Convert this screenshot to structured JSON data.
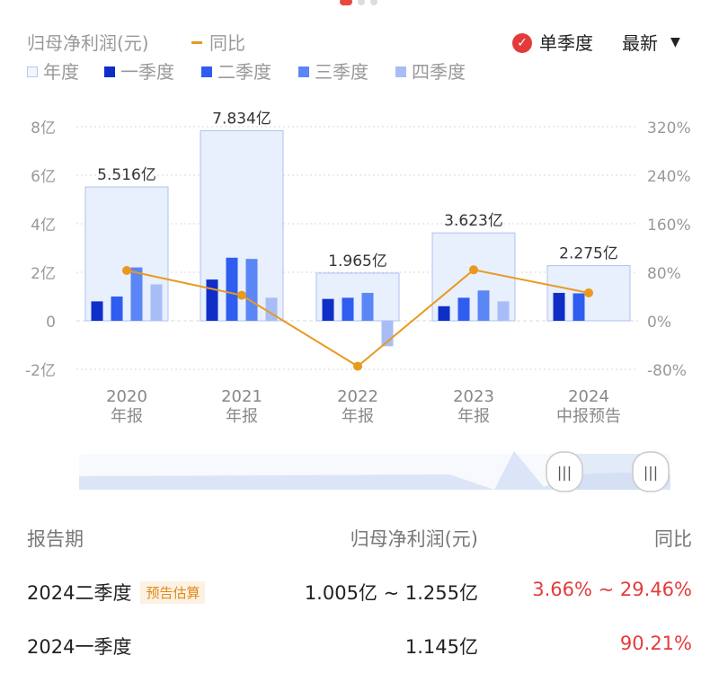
{
  "header": {
    "title": "归母净利润(元)",
    "yoy_label": "同比",
    "seasonal_label": "单季度",
    "sort_label": "最新"
  },
  "legend": [
    {
      "label": "年度",
      "color": "#e8effd"
    },
    {
      "label": "一季度",
      "color": "#0f2ec8"
    },
    {
      "label": "二季度",
      "color": "#2e5df0"
    },
    {
      "label": "三季度",
      "color": "#5b86f5"
    },
    {
      "label": "四季度",
      "color": "#a7bdf6"
    }
  ],
  "chart_data": {
    "type": "bar",
    "categories": [
      "2020 年报",
      "2021 年报",
      "2022 年报",
      "2023 年报",
      "2024 中报预告"
    ],
    "category_labels": [
      [
        "2020",
        "年报"
      ],
      [
        "2021",
        "年报"
      ],
      [
        "2022",
        "年报"
      ],
      [
        "2023",
        "年报"
      ],
      [
        "2024",
        "中报预告"
      ]
    ],
    "annual": {
      "name": "年度",
      "values": [
        5.516,
        7.834,
        1.965,
        3.623,
        2.275
      ],
      "labels": [
        "5.516亿",
        "7.834亿",
        "1.965亿",
        "3.623亿",
        "2.275亿"
      ]
    },
    "series": [
      {
        "name": "一季度",
        "values": [
          0.8,
          1.7,
          0.9,
          0.6,
          1.15
        ]
      },
      {
        "name": "二季度",
        "values": [
          1.0,
          2.6,
          0.95,
          0.95,
          1.13
        ]
      },
      {
        "name": "三季度",
        "values": [
          2.2,
          2.55,
          1.15,
          1.25,
          null
        ]
      },
      {
        "name": "四季度",
        "values": [
          1.5,
          0.95,
          -1.05,
          0.8,
          null
        ]
      }
    ],
    "yoy": {
      "name": "同比",
      "values": [
        83,
        42,
        -75,
        84,
        46
      ]
    },
    "y_left": {
      "ticks": [
        8,
        6,
        4,
        2,
        0,
        -2
      ],
      "tick_labels": [
        "8亿",
        "6亿",
        "4亿",
        "2亿",
        "0",
        "-2亿"
      ],
      "ylim": [
        -2,
        8
      ]
    },
    "y_right": {
      "tick_labels": [
        "320%",
        "240%",
        "160%",
        "80%",
        "0%",
        "-80%"
      ],
      "ylim": [
        -80,
        320
      ]
    },
    "colors": {
      "annual_fill": "#e8effd",
      "annual_stroke": "#aec3ef",
      "grid": "#d8d8d8",
      "yoy_line": "#e89a1e"
    }
  },
  "table": {
    "headers": [
      "报告期",
      "归母净利润(元)",
      "同比"
    ],
    "rows": [
      {
        "period": "2024二季度",
        "badge": "预告估算",
        "value": "1.005亿 ~ 1.255亿",
        "yoy": "3.66% ~ 29.46%"
      },
      {
        "period": "2024一季度",
        "badge": "",
        "value": "1.145亿",
        "yoy": "90.21%"
      }
    ]
  }
}
